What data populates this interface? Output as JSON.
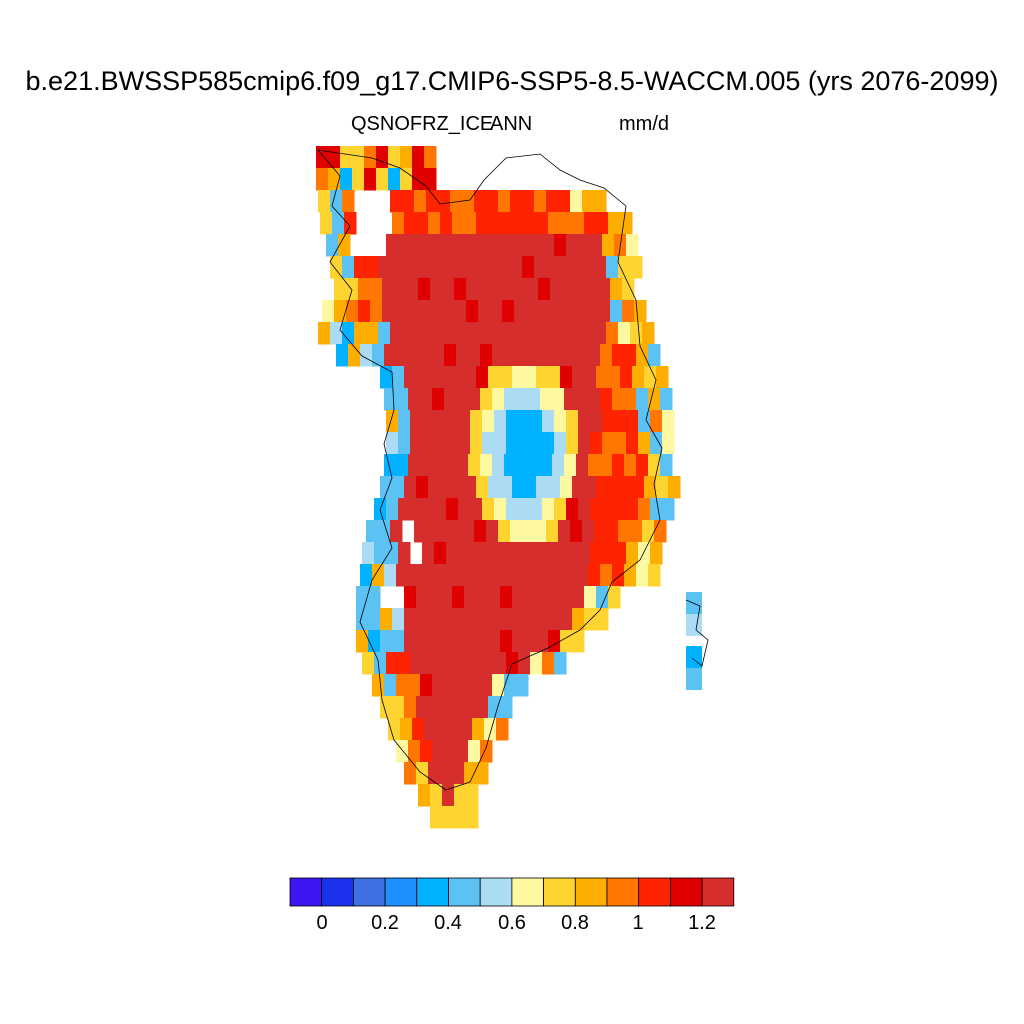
{
  "header": {
    "title": "b.e21.BWSSP585cmip6.f09_g17.CMIP6-SSP5-8.5-WACCM.005 (yrs 2076-2099)",
    "variable": "QSNOFRZ_ICE",
    "season": "ANN",
    "units": "mm/d"
  },
  "colorbar": {
    "labels": [
      "0",
      "0.2",
      "0.4",
      "0.6",
      "0.8",
      "1",
      "1.2"
    ],
    "colors": [
      "#3f14f5",
      "#1c31eb",
      "#3f6fe0",
      "#1e90ff",
      "#00b2ff",
      "#5bc2f3",
      "#abdcf4",
      "#fef8a1",
      "#fed431",
      "#feae00",
      "#ff7600",
      "#ff2400",
      "#e10000",
      "#d62d2d"
    ]
  }
}
